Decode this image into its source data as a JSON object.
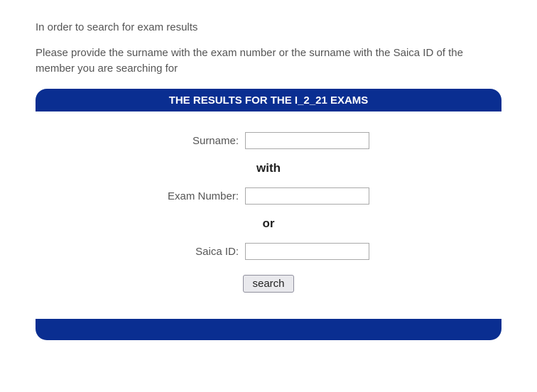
{
  "intro": {
    "line1": "In order to search for exam results",
    "line2": "Please provide the surname with the exam number or the surname with the Saica ID of the member you are searching for"
  },
  "header_bar": {
    "text": "THE RESULTS FOR THE I_2_21 EXAMS",
    "background_color": "#0a2e91",
    "text_color": "#ffffff"
  },
  "form": {
    "surname": {
      "label": "Surname:",
      "value": ""
    },
    "conjunction1": "with",
    "exam_number": {
      "label": "Exam Number:",
      "value": ""
    },
    "conjunction2": "or",
    "saica_id": {
      "label": "Saica ID:",
      "value": ""
    },
    "search_button": "search"
  },
  "footer_bar": {
    "background_color": "#0a2e91"
  }
}
